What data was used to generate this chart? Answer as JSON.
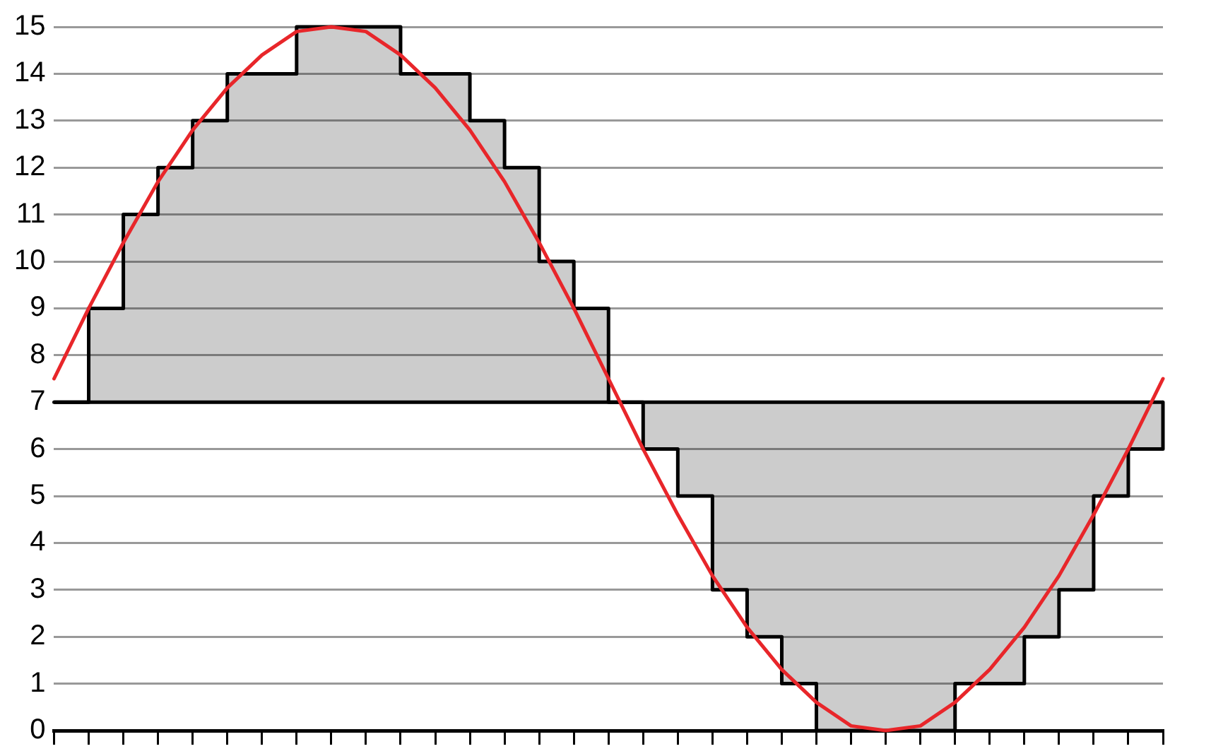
{
  "chart_data": {
    "type": "step",
    "categories": [
      null,
      null,
      null,
      null,
      null,
      null,
      null,
      null,
      null,
      null,
      null,
      null,
      null,
      null,
      null,
      null,
      null,
      null,
      null,
      null,
      null,
      null,
      null,
      null,
      null,
      null,
      null,
      null,
      null,
      null,
      null,
      null,
      null
    ],
    "series": [
      {
        "color": "#000000",
        "values": [
          7,
          9,
          11,
          12,
          13,
          14,
          14,
          15,
          15,
          15,
          14,
          14,
          13,
          12,
          10,
          9,
          7,
          6,
          5,
          3,
          2,
          1,
          0,
          0,
          0,
          0,
          1,
          1,
          2,
          3,
          5,
          6,
          7
        ]
      },
      {
        "type": "line",
        "color": "#e8262a",
        "values": [
          7.5,
          9.0,
          10.4,
          11.7,
          12.8,
          13.7,
          14.4,
          14.9,
          15,
          14.9,
          14.4,
          13.7,
          12.8,
          11.7,
          10.4,
          9.0,
          7.5,
          6.0,
          4.6,
          3.3,
          2.2,
          1.3,
          0.6,
          0.1,
          0,
          0.1,
          0.6,
          1.3,
          2.2,
          3.3,
          4.6,
          6.0,
          7.5
        ]
      }
    ],
    "ref_lines": [
      {
        "axis": "y",
        "value": 7,
        "color": "#000000"
      }
    ],
    "ylim": [
      0,
      15
    ],
    "yticks": [
      0,
      1,
      2,
      3,
      4,
      5,
      6,
      7,
      8,
      9,
      10,
      11,
      12,
      13,
      14,
      15
    ],
    "tick_labels": "y",
    "grid": "y",
    "legend": false,
    "marker": "none"
  }
}
